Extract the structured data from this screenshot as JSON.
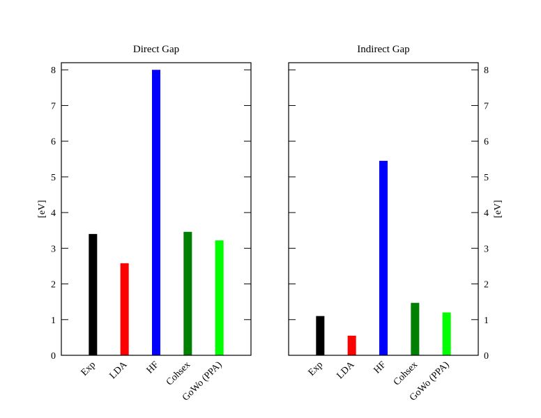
{
  "chart_data": [
    {
      "type": "bar",
      "title": "Direct Gap",
      "ylabel": "[eV]",
      "yaxis_side": "left",
      "categories": [
        "Exp",
        "LDA",
        "HF",
        "Cohsex",
        "GoWo (PPA)"
      ],
      "values": [
        3.4,
        2.58,
        8.0,
        3.46,
        3.22
      ],
      "colors": [
        "#000000",
        "#ff0000",
        "#0000ff",
        "#008000",
        "#00ff00"
      ],
      "ylim": [
        0,
        8.2
      ],
      "yticks": [
        0,
        1,
        2,
        3,
        4,
        5,
        6,
        7,
        8
      ]
    },
    {
      "type": "bar",
      "title": "Indirect Gap",
      "ylabel": "[eV]",
      "yaxis_side": "right",
      "categories": [
        "Exp",
        "LDA",
        "HF",
        "Cohsex",
        "GoWo (PPA)"
      ],
      "values": [
        1.1,
        0.55,
        5.45,
        1.47,
        1.2
      ],
      "colors": [
        "#000000",
        "#ff0000",
        "#0000ff",
        "#008000",
        "#00ff00"
      ],
      "ylim": [
        0,
        8.2
      ],
      "yticks": [
        0,
        1,
        2,
        3,
        4,
        5,
        6,
        7,
        8
      ]
    }
  ]
}
